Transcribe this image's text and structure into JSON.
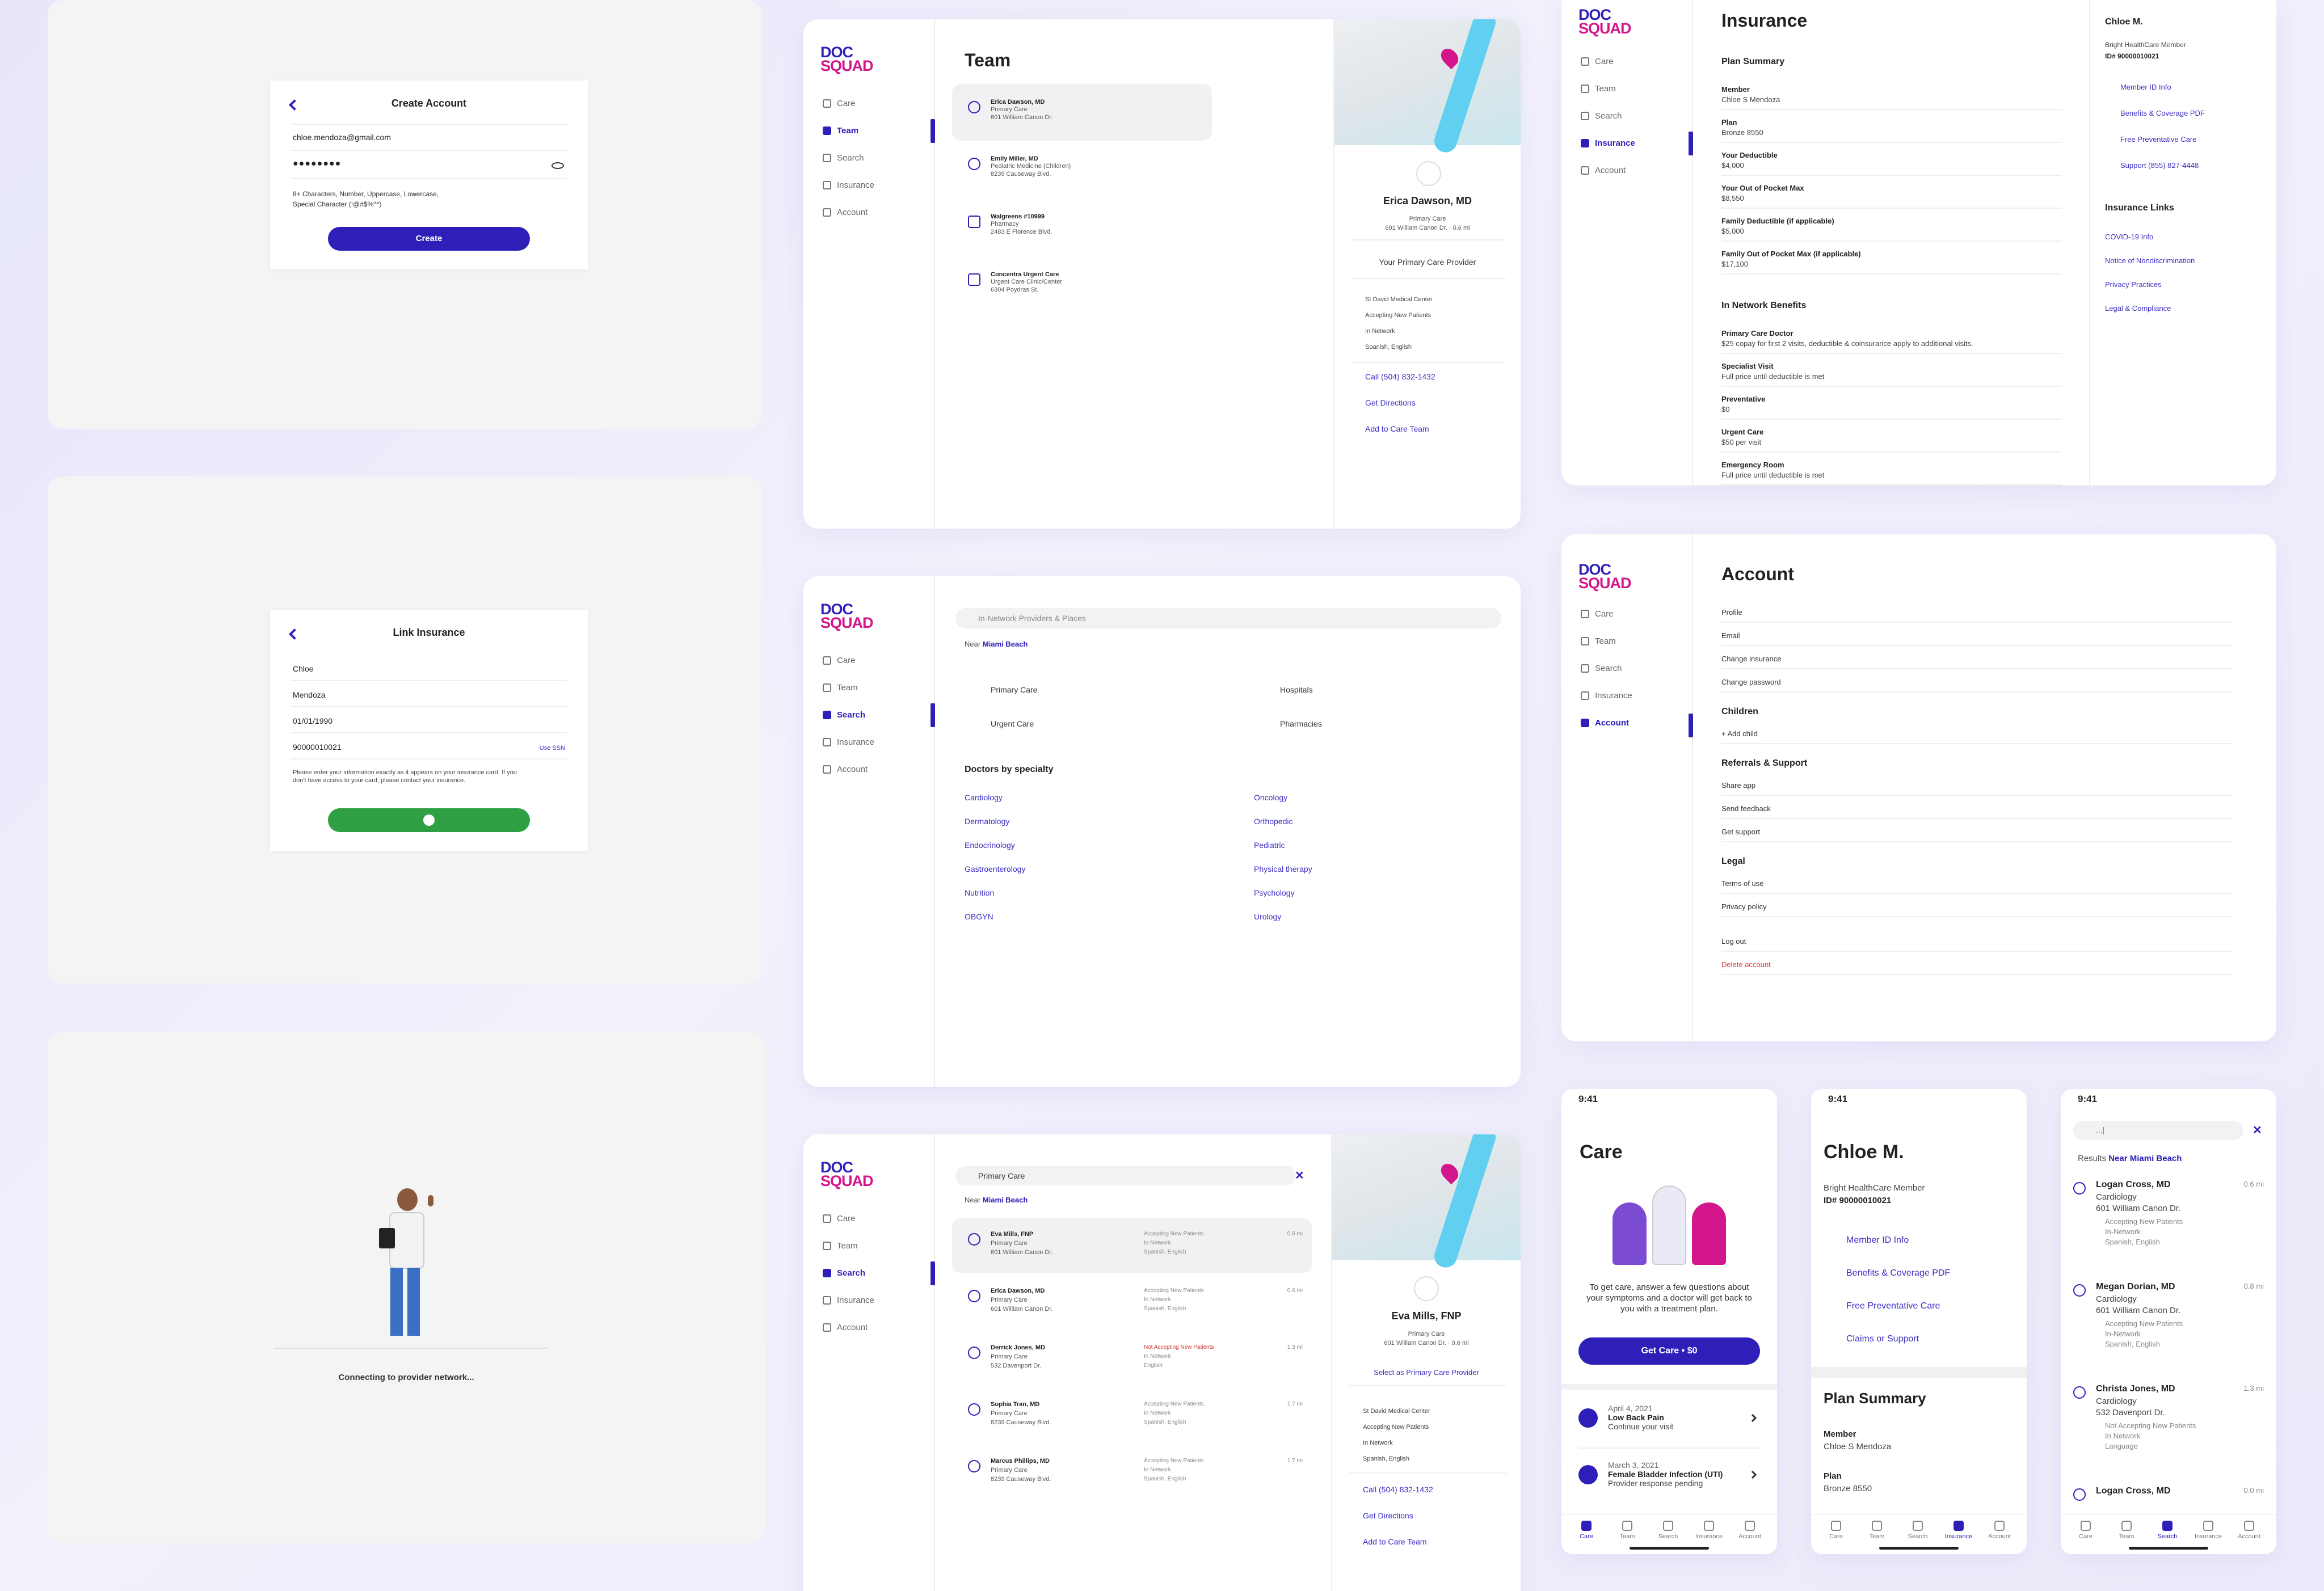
{
  "colors": {
    "primary": "#2d1fb8",
    "brand_pink": "#d3168c",
    "success": "#2ea043",
    "danger": "#e0393e"
  },
  "logo": {
    "line1": "DOC",
    "line2": "SQUAD"
  },
  "nav": {
    "care": "Care",
    "team": "Team",
    "search": "Search",
    "insurance": "Insurance",
    "account": "Account"
  },
  "create_account": {
    "title": "Create Account",
    "email": "chloe.mendoza@gmail.com",
    "password": "●●●●●●●●",
    "rules": "8+ Characters, Number, Uppercase, Lowercase,",
    "rules2": "Special Character (!@#$%^*)",
    "button": "Create"
  },
  "link_insurance": {
    "title": "Link Insurance",
    "first": "Chloe",
    "last": "Mendoza",
    "dob": "01/01/1990",
    "member_id": "90000010021",
    "use_ssn": "Use SSN",
    "note": "Please enter your information exactly as it appears on your insurance card. If you don't have access to your card, please contact your insurance."
  },
  "connecting": {
    "text": "Connecting to provider network..."
  },
  "team": {
    "title": "Team",
    "items": [
      {
        "name": "Erica Dawson, MD",
        "spec": "Primary Care",
        "addr": "601 William Canon Dr."
      },
      {
        "name": "Emily Miller, MD",
        "spec": "Pediatric Medicine (Children)",
        "addr": "8239 Causeway Blvd."
      },
      {
        "name": "Walgreens #10999",
        "spec": "Pharmacy",
        "addr": "2483 E Florence Blvd."
      },
      {
        "name": "Concentra Urgent Care",
        "spec": "Urgent Care Clinic/Center",
        "addr": "6304 Poydras St."
      }
    ]
  },
  "detail1": {
    "name": "Erica Dawson, MD",
    "spec": "Primary Care",
    "addr": "601 William Canon Dr. · 0.6 mi",
    "badge": "Your Primary Care Provider",
    "facts": [
      "St David Medical Center",
      "Accepting New Patients",
      "In Network",
      "Spanish, English"
    ],
    "call": "Call (504) 832-1432",
    "directions": "Get Directions",
    "add": "Add to Care Team"
  },
  "search_page": {
    "placeholder": "In-Network Providers & Places",
    "near": "Near",
    "place": "Miami Beach",
    "cats": [
      "Primary Care",
      "Hospitals",
      "Urgent Care",
      "Pharmacies"
    ],
    "specialty_title": "Doctors by specialty",
    "left": [
      "Cardiology",
      "Dermatology",
      "Endocrinology",
      "Gastroenterology",
      "Nutrition",
      "OBGYN"
    ],
    "right": [
      "Oncology",
      "Orthopedic",
      "Pediatric",
      "Physical therapy",
      "Psychology",
      "Urology"
    ]
  },
  "results": {
    "query": "Primary Care",
    "near": "Near",
    "place": "Miami Beach",
    "items": [
      {
        "name": "Eva Mills, FNP",
        "spec": "Primary Care",
        "addr": "601 William Canon Dr.",
        "dist": "0.6 mi",
        "f1": "Accepting New Patients",
        "f2": "In Network",
        "f3": "Spanish, English"
      },
      {
        "name": "Erica Dawson, MD",
        "spec": "Primary Care",
        "addr": "601 William Canon Dr.",
        "dist": "0.6 mi",
        "f1": "Accepting New Patients",
        "f2": "In Network",
        "f3": "Spanish, English"
      },
      {
        "name": "Derrick Jones, MD",
        "spec": "Primary Care",
        "addr": "532 Davenport Dr.",
        "dist": "1.3 mi",
        "f1": "Not Accepting New Patients",
        "f2": "In Network",
        "f3": "English"
      },
      {
        "name": "Sophia Tran, MD",
        "spec": "Primary Care",
        "addr": "8239 Causeway Blvd.",
        "dist": "1.7 mi",
        "f1": "Accepting New Patients",
        "f2": "In Network",
        "f3": "Spanish, English"
      },
      {
        "name": "Marcus Phillips, MD",
        "spec": "Primary Care",
        "addr": "8239 Causeway Blvd.",
        "dist": "1.7 mi",
        "f1": "Accepting New Patients",
        "f2": "In Network",
        "f3": "Spanish, English"
      }
    ]
  },
  "detail2": {
    "name": "Eva Mills, FNP",
    "spec": "Primary Care",
    "addr": "601 William Canon Dr. · 0.6 mi",
    "badge": "Select as Primary Care Provider",
    "facts": [
      "St David Medical Center",
      "Accepting New Patients",
      "In Network",
      "Spanish, English"
    ],
    "call": "Call (504) 832-1432",
    "directions": "Get Directions",
    "add": "Add to Care Team"
  },
  "insurance": {
    "title": "Insurance",
    "plan_summary": "Plan Summary",
    "rows": [
      {
        "k": "Member",
        "v": "Chloe S Mendoza"
      },
      {
        "k": "Plan",
        "v": "Bronze 8550"
      },
      {
        "k": "Your Deductible",
        "v": "$4,000"
      },
      {
        "k": "Your Out of Pocket Max",
        "v": "$8,550"
      },
      {
        "k": "Family Deductible (if applicable)",
        "v": "$5,000"
      },
      {
        "k": "Family Out of Pocket Max (if applicable)",
        "v": "$17,100"
      }
    ],
    "benefits_title": "In Network Benefits",
    "benefits": [
      {
        "k": "Primary Care Doctor",
        "v": "$25 copay for first 2 visits, deductible & coinsurance apply to additional visits."
      },
      {
        "k": "Specialist Visit",
        "v": "Full price until deductible is met"
      },
      {
        "k": "Preventative",
        "v": "$0"
      },
      {
        "k": "Urgent Care",
        "v": "$50 per visit"
      },
      {
        "k": "Emergency Room",
        "v": "Full price until deductible is met"
      }
    ],
    "member_name": "Chloe M.",
    "member_org": "Bright HealthCare Member",
    "member_id": "ID# 90000010021",
    "actions": [
      "Member ID Info",
      "Benefits & Coverage PDF",
      "Free Preventative Care",
      "Support (855) 827-4448"
    ],
    "links_title": "Insurance Links",
    "links": [
      "COVID-19 Info",
      "Notice of Nondiscrimination",
      "Privacy Practices",
      "Legal & Compliance"
    ]
  },
  "account": {
    "title": "Account",
    "items": [
      "Profile",
      "Email",
      "Change insurance",
      "Change password"
    ],
    "children_title": "Children",
    "add_child": "+ Add child",
    "support_title": "Referrals & Support",
    "support": [
      "Share app",
      "Send feedback",
      "Get support"
    ],
    "legal_title": "Legal",
    "legal": [
      "Terms of use",
      "Privacy policy"
    ],
    "logout": "Log out",
    "delete": "Delete account"
  },
  "phone_care": {
    "time": "9:41",
    "title": "Care",
    "prompt": "To get care, answer a few questions about your symptoms and a doctor will get back to you with a treatment plan.",
    "button": "Get Care  •  $0",
    "visits": [
      {
        "date": "April 4, 2021",
        "title": "Low Back Pain",
        "sub": "Continue your visit"
      },
      {
        "date": "March 3, 2021",
        "title": "Female Bladder Infection (UTI)",
        "sub": "Provider response pending"
      }
    ]
  },
  "phone_ins": {
    "time": "9:41",
    "name": "Chloe M.",
    "org": "Bright HealthCare Member",
    "id": "ID# 90000010021",
    "actions": [
      "Member ID Info",
      "Benefits & Coverage PDF",
      "Free Preventative Care",
      "Claims or Support"
    ],
    "plan_summary": "Plan Summary",
    "member_k": "Member",
    "member_v": "Chloe S Mendoza",
    "plan_k": "Plan",
    "plan_v": "Bronze 8550"
  },
  "phone_search": {
    "time": "9:41",
    "query": "...|",
    "results": "Results",
    "near": "Near Miami Beach",
    "items": [
      {
        "name": "Logan Cross, MD",
        "spec": "Cardiology",
        "addr": "601 William Canon Dr.",
        "dist": "0.6 mi",
        "f1": "Accepting New Patients",
        "f2": "In-Network",
        "f3": "Spanish, English"
      },
      {
        "name": "Megan Dorian, MD",
        "spec": "Cardiology",
        "addr": "601 William Canon Dr.",
        "dist": "0.8 mi",
        "f1": "Accepting New Patients",
        "f2": "In-Network",
        "f3": "Spanish, English"
      },
      {
        "name": "Christa Jones, MD",
        "spec": "Cardiology",
        "addr": "532 Davenport Dr.",
        "dist": "1.3 mi",
        "f1": "Not Accepting New Patients",
        "f2": "In Network",
        "f3": "Language"
      },
      {
        "name": "Logan Cross, MD",
        "spec": "",
        "addr": "",
        "dist": "0.0 mi",
        "f1": "",
        "f2": "",
        "f3": ""
      }
    ]
  },
  "tabs": [
    "Care",
    "Team",
    "Search",
    "Insurance",
    "Account"
  ]
}
